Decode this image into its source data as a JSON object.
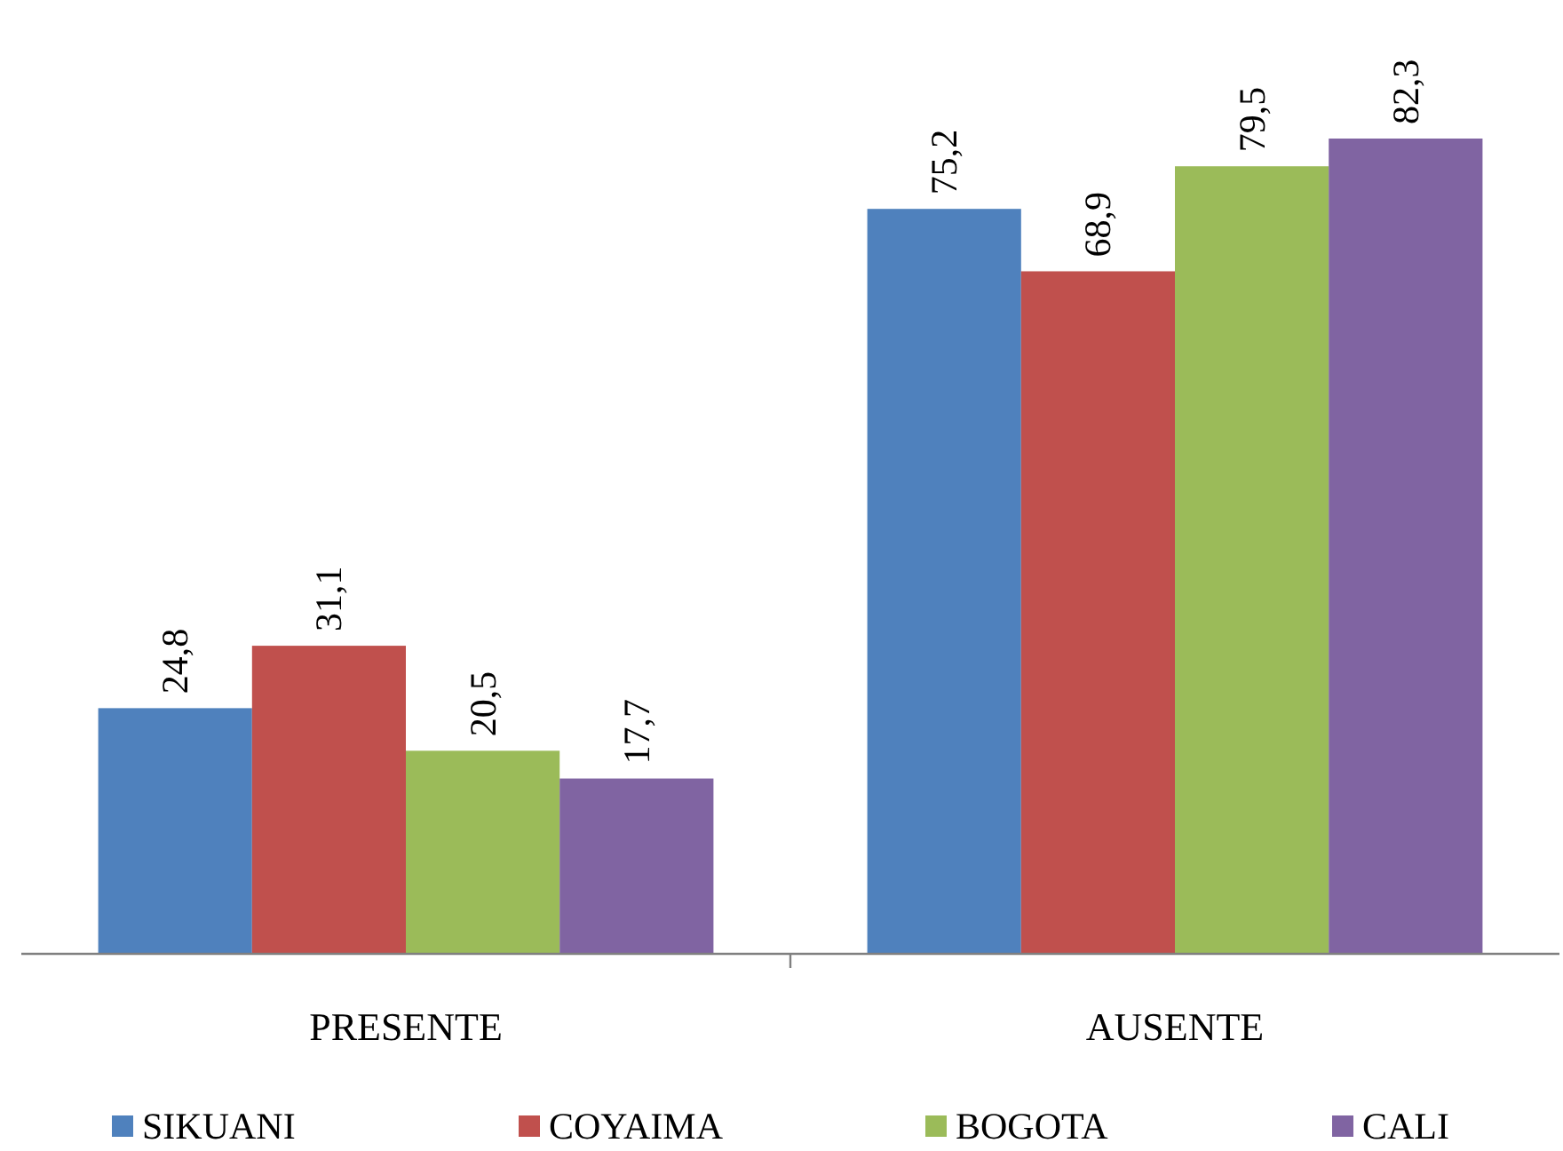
{
  "chart_data": {
    "type": "bar",
    "categories": [
      "PRESENTE",
      "AUSENTE"
    ],
    "series": [
      {
        "name": "SIKUANI",
        "color": "#4f81bd",
        "values": [
          24.8,
          75.2
        ],
        "value_labels": [
          "24,8",
          "75,2"
        ]
      },
      {
        "name": "COYAIMA",
        "color": "#c0504d",
        "values": [
          31.1,
          68.9
        ],
        "value_labels": [
          "31,1",
          "68,9"
        ]
      },
      {
        "name": "BOGOTA",
        "color": "#9bbb59",
        "values": [
          20.5,
          79.5
        ],
        "value_labels": [
          "20,5",
          "79,5"
        ]
      },
      {
        "name": "CALI",
        "color": "#8064a2",
        "values": [
          17.7,
          82.3
        ],
        "value_labels": [
          "17,7",
          "82,3"
        ]
      }
    ],
    "legend": "bottom"
  }
}
